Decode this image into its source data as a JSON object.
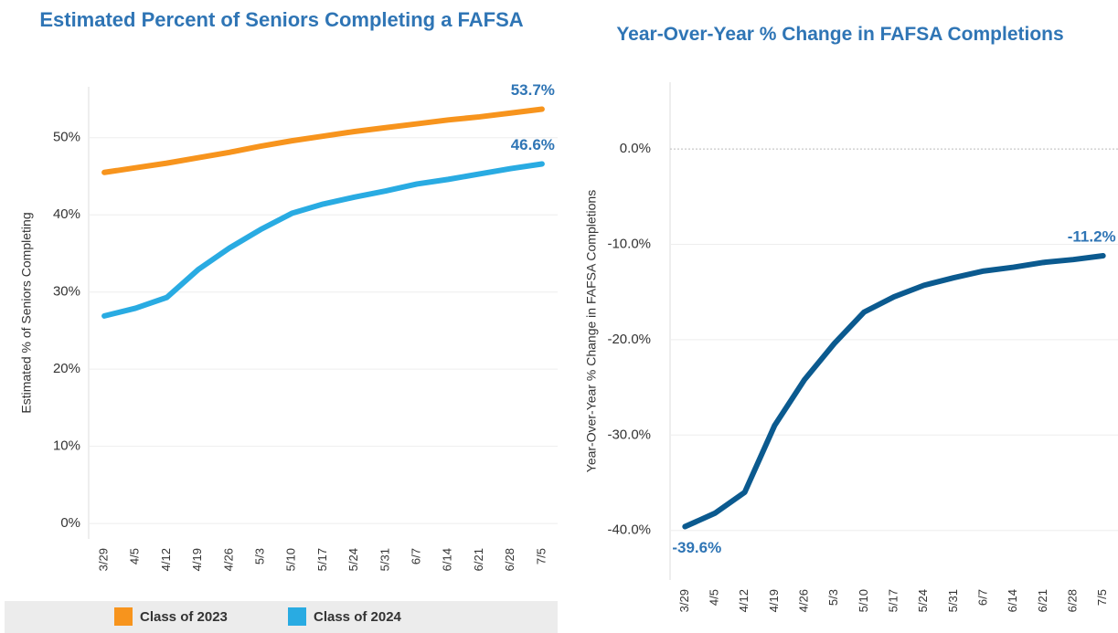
{
  "chart_data": [
    {
      "type": "line",
      "title": "Estimated Percent of Seniors Completing a FAFSA",
      "y_label": "Estimated % of Seniors Completing",
      "categories": [
        "3/29",
        "4/5",
        "4/12",
        "4/19",
        "4/26",
        "5/3",
        "5/10",
        "5/17",
        "5/24",
        "5/31",
        "6/7",
        "6/14",
        "6/21",
        "6/28",
        "7/5"
      ],
      "series": [
        {
          "name": "Class of 2023",
          "color": "#f7941d",
          "values": [
            45.5,
            46.1,
            46.7,
            47.4,
            48.1,
            48.9,
            49.6,
            50.2,
            50.8,
            51.3,
            51.8,
            52.3,
            52.7,
            53.2,
            53.7
          ],
          "value_labels": [
            null,
            null,
            null,
            null,
            null,
            null,
            null,
            null,
            null,
            null,
            null,
            null,
            null,
            null,
            "53.7%"
          ]
        },
        {
          "name": "Class of 2024",
          "color": "#29abe2",
          "values": [
            26.9,
            27.9,
            29.3,
            32.9,
            35.7,
            38.1,
            40.2,
            41.4,
            42.3,
            43.1,
            44.0,
            44.6,
            45.3,
            46.0,
            46.6
          ],
          "value_labels": [
            null,
            null,
            null,
            null,
            null,
            null,
            null,
            null,
            null,
            null,
            null,
            null,
            null,
            null,
            "46.6%"
          ]
        }
      ],
      "ylim": [
        -2,
        56.6
      ],
      "yticks": [
        {
          "value": 0,
          "label": "0%"
        },
        {
          "value": 10,
          "label": "10%"
        },
        {
          "value": 20,
          "label": "20%"
        },
        {
          "value": 30,
          "label": "30%"
        },
        {
          "value": 40,
          "label": "40%"
        },
        {
          "value": 50,
          "label": "50%"
        }
      ],
      "grid": true,
      "legend": "bottom"
    },
    {
      "type": "line",
      "title": "Year-Over-Year % Change in FAFSA Completions",
      "y_label": "Year-Over-Year % Change in FAFSA Completions",
      "categories": [
        "3/29",
        "4/5",
        "4/12",
        "4/19",
        "4/26",
        "5/3",
        "5/10",
        "5/17",
        "5/24",
        "5/31",
        "6/7",
        "6/14",
        "6/21",
        "6/28",
        "7/5"
      ],
      "series": [
        {
          "color": "#0b5a8f",
          "values": [
            -39.6,
            -38.2,
            -36.0,
            -29.0,
            -24.2,
            -20.4,
            -17.1,
            -15.5,
            -14.3,
            -13.5,
            -12.8,
            -12.4,
            -11.9,
            -11.6,
            -11.2
          ],
          "value_labels": [
            "-39.6%",
            null,
            null,
            null,
            null,
            null,
            null,
            null,
            null,
            null,
            null,
            null,
            null,
            null,
            "-11.2%"
          ]
        }
      ],
      "ylim": [
        -45.2,
        7
      ],
      "yticks": [
        {
          "value": -40,
          "label": "-40.0%"
        },
        {
          "value": -30,
          "label": "-30.0%"
        },
        {
          "value": -20,
          "label": "-20.0%"
        },
        {
          "value": -10,
          "label": "-10.0%"
        },
        {
          "value": 0,
          "label": "0.0%"
        }
      ],
      "grid": true
    }
  ]
}
